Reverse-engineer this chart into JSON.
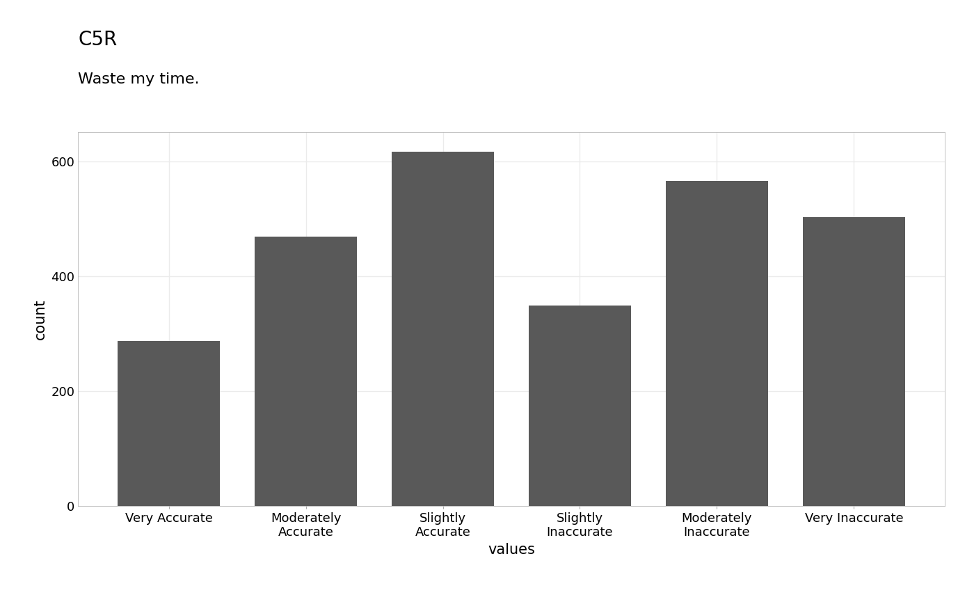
{
  "title": "C5R",
  "subtitle": "Waste my time.",
  "categories": [
    "Very Accurate",
    "Moderately\nAccurate",
    "Slightly\nAccurate",
    "Slightly\nInaccurate",
    "Moderately\nInaccurate",
    "Very Inaccurate"
  ],
  "values": [
    287,
    468,
    617,
    349,
    566,
    502
  ],
  "bar_color": "#595959",
  "xlabel": "values",
  "ylabel": "count",
  "ylim": [
    0,
    650
  ],
  "yticks": [
    0,
    200,
    400,
    600
  ],
  "background_color": "#ffffff",
  "plot_bg_color": "#ffffff",
  "grid_color": "#ebebeb",
  "title_fontsize": 20,
  "subtitle_fontsize": 16,
  "axis_label_fontsize": 15,
  "tick_fontsize": 13,
  "bar_width": 0.75
}
